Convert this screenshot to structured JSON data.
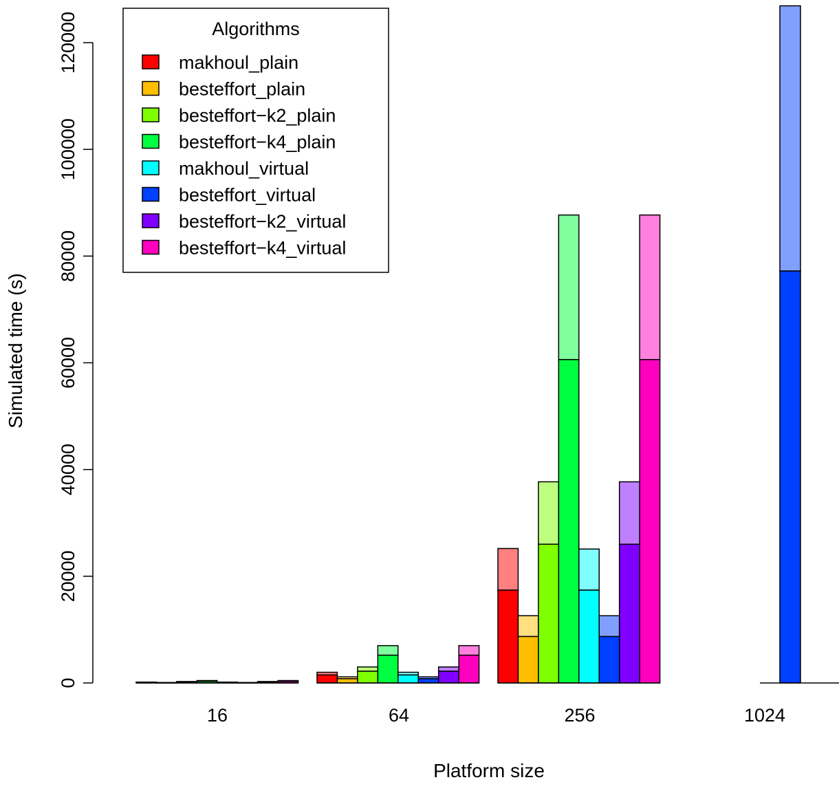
{
  "chart_data": {
    "type": "bar",
    "stacked_overlay": true,
    "xlabel": "Platform size",
    "ylabel": "Simulated time (s)",
    "ylim": [
      0,
      127000
    ],
    "yticks": [
      0,
      20000,
      40000,
      60000,
      80000,
      100000,
      120000
    ],
    "grid": false,
    "legend_position": "top-left",
    "legend_title": "Algorithms",
    "categories": [
      "16",
      "64",
      "256",
      "1024"
    ],
    "series": [
      {
        "name": "makhoul_plain",
        "color": "#ff0000",
        "light_color": "#ff8080",
        "base": [
          110,
          1500,
          17400,
          null
        ],
        "total": [
          160,
          2000,
          25200,
          null
        ]
      },
      {
        "name": "besteffort_plain",
        "color": "#ffbf00",
        "light_color": "#ffdf80",
        "base": [
          60,
          800,
          8700,
          null
        ],
        "total": [
          80,
          1150,
          12600,
          null
        ]
      },
      {
        "name": "besteffort−k2_plain",
        "color": "#80ff00",
        "light_color": "#bfff80",
        "base": [
          200,
          2200,
          26000,
          null
        ],
        "total": [
          270,
          3000,
          37700,
          null
        ]
      },
      {
        "name": "besteffort−k4_plain",
        "color": "#00ff40",
        "light_color": "#80ff9f",
        "base": [
          300,
          5200,
          60600,
          null
        ],
        "total": [
          450,
          7000,
          87700,
          null
        ]
      },
      {
        "name": "makhoul_virtual",
        "color": "#00ffff",
        "light_color": "#80ffff",
        "base": [
          110,
          1500,
          17400,
          null
        ],
        "total": [
          160,
          2000,
          25100,
          null
        ]
      },
      {
        "name": "besteffort_virtual",
        "color": "#0040ff",
        "light_color": "#809fff",
        "base": [
          60,
          800,
          8700,
          77200
        ],
        "total": [
          80,
          1150,
          12600,
          126900
        ]
      },
      {
        "name": "besteffort−k2_virtual",
        "color": "#8000ff",
        "light_color": "#bf80ff",
        "base": [
          200,
          2200,
          26000,
          null
        ],
        "total": [
          270,
          3000,
          37700,
          null
        ]
      },
      {
        "name": "besteffort−k4_virtual",
        "color": "#ff00bf",
        "light_color": "#ff80df",
        "base": [
          300,
          5200,
          60600,
          null
        ],
        "total": [
          450,
          7000,
          87700,
          null
        ]
      }
    ]
  }
}
